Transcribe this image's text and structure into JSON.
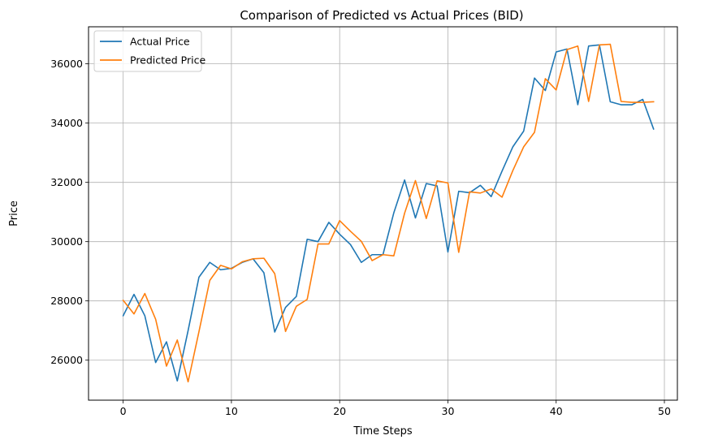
{
  "chart_data": {
    "type": "line",
    "title": "Comparison of Predicted vs Actual Prices (BID)",
    "xlabel": "Time Steps",
    "ylabel": "Price",
    "xlim": [
      -3.2,
      51.2
    ],
    "ylim": [
      24650,
      37250
    ],
    "xticks": [
      0,
      10,
      20,
      30,
      40,
      50
    ],
    "yticks": [
      26000,
      28000,
      30000,
      32000,
      34000,
      36000
    ],
    "grid": true,
    "legend_position": "top-left",
    "x": [
      0,
      1,
      2,
      3,
      4,
      5,
      6,
      7,
      8,
      9,
      10,
      11,
      12,
      13,
      14,
      15,
      16,
      17,
      18,
      19,
      20,
      21,
      22,
      23,
      24,
      25,
      26,
      27,
      28,
      29,
      30,
      31,
      32,
      33,
      34,
      35,
      36,
      37,
      38,
      39,
      40,
      41,
      42,
      43,
      44,
      45,
      46,
      47,
      48,
      49
    ],
    "series": [
      {
        "name": "Actual Price",
        "color": "#1f77b4",
        "values": [
          27500,
          28220,
          27500,
          25920,
          26620,
          25300,
          27000,
          28800,
          29300,
          29050,
          29100,
          29300,
          29420,
          28950,
          26950,
          27780,
          28150,
          30080,
          30000,
          30650,
          30250,
          29900,
          29300,
          29560,
          29560,
          30970,
          32080,
          30800,
          31960,
          31880,
          29650,
          31700,
          31650,
          31900,
          31520,
          32380,
          33200,
          33730,
          35520,
          35100,
          36400,
          36500,
          34620,
          36600,
          36640,
          34720,
          34620,
          34620,
          34800,
          33800
        ]
      },
      {
        "name": "Predicted Price",
        "color": "#ff7f0e",
        "values": [
          28020,
          27560,
          28250,
          27380,
          25800,
          26680,
          25270,
          26960,
          28690,
          29200,
          29080,
          29320,
          29420,
          29440,
          28920,
          26970,
          27820,
          28050,
          29920,
          29920,
          30710,
          30350,
          30010,
          29360,
          29560,
          29520,
          30960,
          32060,
          30780,
          32050,
          31980,
          29640,
          31680,
          31640,
          31780,
          31500,
          32400,
          33200,
          33690,
          35500,
          35120,
          36480,
          36600,
          34730,
          36640,
          36660,
          34730,
          34700,
          34700,
          34720
        ]
      }
    ]
  }
}
